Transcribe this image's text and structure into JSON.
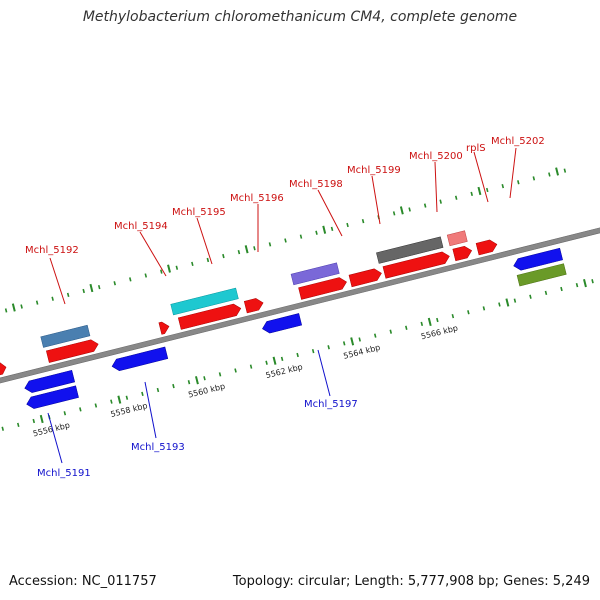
{
  "title": "Methylobacterium chloromethanicum CM4, complete genome",
  "footer": {
    "accession": "Accession: NC_011757",
    "summary": "Topology: circular; Length: 5,777,908 bp; Genes: 5,249"
  },
  "scale_labels": [
    "5556 kbp",
    "5558 kbp",
    "5560 kbp",
    "5562 kbp",
    "5564 kbp",
    "5566 kbp"
  ],
  "gene_labels_forward": [
    "Mchl_5192",
    "Mchl_5194",
    "Mchl_5195",
    "Mchl_5196",
    "Mchl_5198",
    "Mchl_5199",
    "Mchl_5200",
    "rplS",
    "Mchl_5202"
  ],
  "gene_labels_reverse": [
    "Mchl_5191",
    "Mchl_5193",
    "Mchl_5197"
  ],
  "colors": {
    "forward_label": "#cc1111",
    "reverse_label": "#1111cc",
    "cds_forward": "#ee1111",
    "cds_reverse": "#1111ee",
    "backbone": "#888888",
    "tick": "#227722"
  }
}
